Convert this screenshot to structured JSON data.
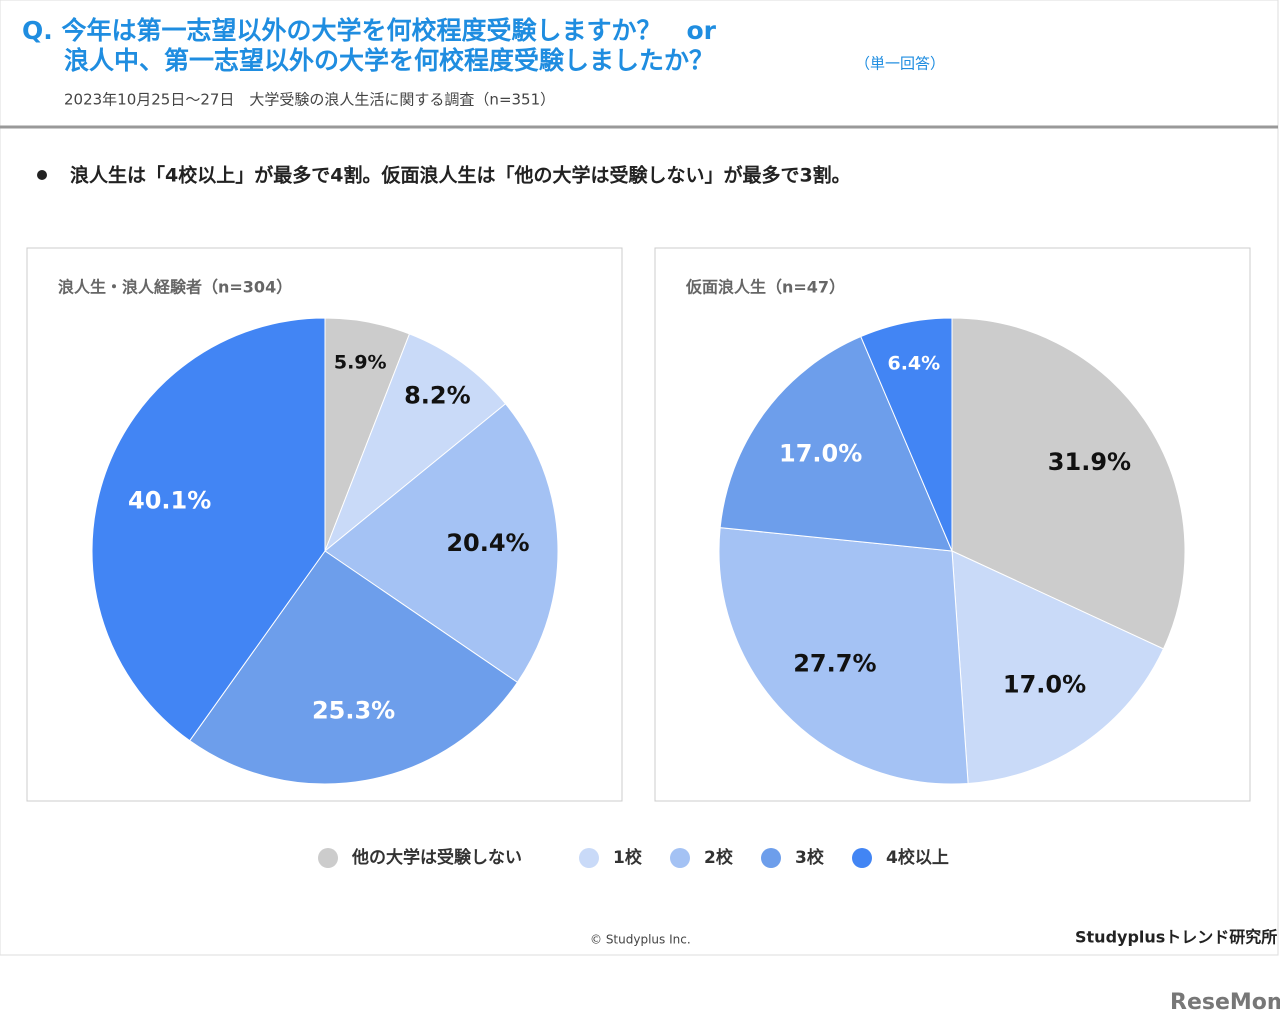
{
  "header": {
    "title_line1": "Q. 今年は第一志望以外の大学を何校程度受験しますか？　or",
    "title_line2": "浪人中、第一志望以外の大学を何校程度受験しましたか？",
    "title_note": "（単一回答）",
    "subtitle": "2023年10月25日～27日　大学受験の浪人生活に関する調査（n=351）"
  },
  "summary": "浪人生は「4校以上」が最多で4割。仮面浪人生は「他の大学は受験しない」が最多で3割。",
  "legend": {
    "labels": [
      "他の大学は受験しない",
      "1校",
      "2校",
      "3校",
      "4校以上"
    ],
    "colors": [
      "#cccccc",
      "#c9daf8",
      "#a4c2f4",
      "#6d9eeb",
      "#4285f4"
    ]
  },
  "chart_data": [
    {
      "type": "pie",
      "title": "浪人生・浪人経験者（n=304）",
      "values": [
        5.9,
        8.2,
        20.4,
        25.3,
        40.1
      ],
      "value_labels": [
        "5.9%",
        "8.2%",
        "20.4%",
        "25.3%",
        "40.1%"
      ]
    },
    {
      "type": "pie",
      "title": "仮面浪人生（n=47）",
      "values": [
        31.9,
        17.0,
        27.7,
        17.0,
        6.4
      ],
      "value_labels": [
        "31.9%",
        "17.0%",
        "27.7%",
        "17.0%",
        "6.4%"
      ]
    }
  ],
  "footer": {
    "copyright": "© Studyplus Inc.",
    "brand": "Studyplusトレンド研究所",
    "watermark": "ReseMom"
  }
}
